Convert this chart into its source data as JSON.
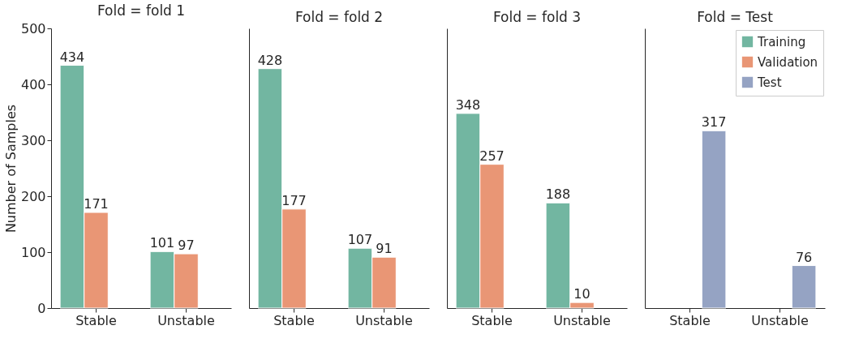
{
  "chart_data": [
    {
      "type": "bar",
      "title": "Fold = fold 1",
      "ylabel": "Number of Samples",
      "categories": [
        "Stable",
        "Unstable"
      ],
      "series": [
        {
          "color": "#72b6a1",
          "values": [
            434,
            101
          ]
        },
        {
          "color": "#e99675",
          "values": [
            171,
            97
          ]
        },
        {
          "color": "#95a3c3",
          "values": [
            null,
            null
          ]
        }
      ],
      "ylim": [
        0,
        500
      ],
      "yticks": [
        0,
        100,
        200,
        300,
        400,
        500
      ],
      "grid": false,
      "data_labels": true
    },
    {
      "type": "bar",
      "title": "Fold = fold 2",
      "categories": [
        "Stable",
        "Unstable"
      ],
      "series": [
        {
          "color": "#72b6a1",
          "values": [
            428,
            107
          ]
        },
        {
          "color": "#e99675",
          "values": [
            177,
            91
          ]
        },
        {
          "color": "#95a3c3",
          "values": [
            null,
            null
          ]
        }
      ],
      "ylim": [
        0,
        500
      ],
      "yticks": [
        0,
        100,
        200,
        300,
        400,
        500
      ],
      "grid": false,
      "data_labels": true,
      "tick_labels": "x"
    },
    {
      "type": "bar",
      "title": "Fold = fold 3",
      "categories": [
        "Stable",
        "Unstable"
      ],
      "series": [
        {
          "color": "#72b6a1",
          "values": [
            348,
            188
          ]
        },
        {
          "color": "#e99675",
          "values": [
            257,
            10
          ]
        },
        {
          "color": "#95a3c3",
          "values": [
            null,
            null
          ]
        }
      ],
      "ylim": [
        0,
        500
      ],
      "yticks": [
        0,
        100,
        200,
        300,
        400,
        500
      ],
      "grid": false,
      "data_labels": true,
      "tick_labels": "x"
    },
    {
      "type": "bar",
      "title": "Fold = Test",
      "categories": [
        "Stable",
        "Unstable"
      ],
      "series": [
        {
          "name": "Training",
          "color": "#72b6a1",
          "values": [
            null,
            null
          ]
        },
        {
          "name": "Validation",
          "color": "#e99675",
          "values": [
            null,
            null
          ]
        },
        {
          "name": "Test",
          "color": "#95a3c3",
          "values": [
            317,
            76
          ]
        }
      ],
      "ylim": [
        0,
        500
      ],
      "yticks": [
        0,
        100,
        200,
        300,
        400,
        500
      ],
      "grid": false,
      "data_labels": true,
      "tick_labels": "x",
      "legend": "top right"
    }
  ]
}
